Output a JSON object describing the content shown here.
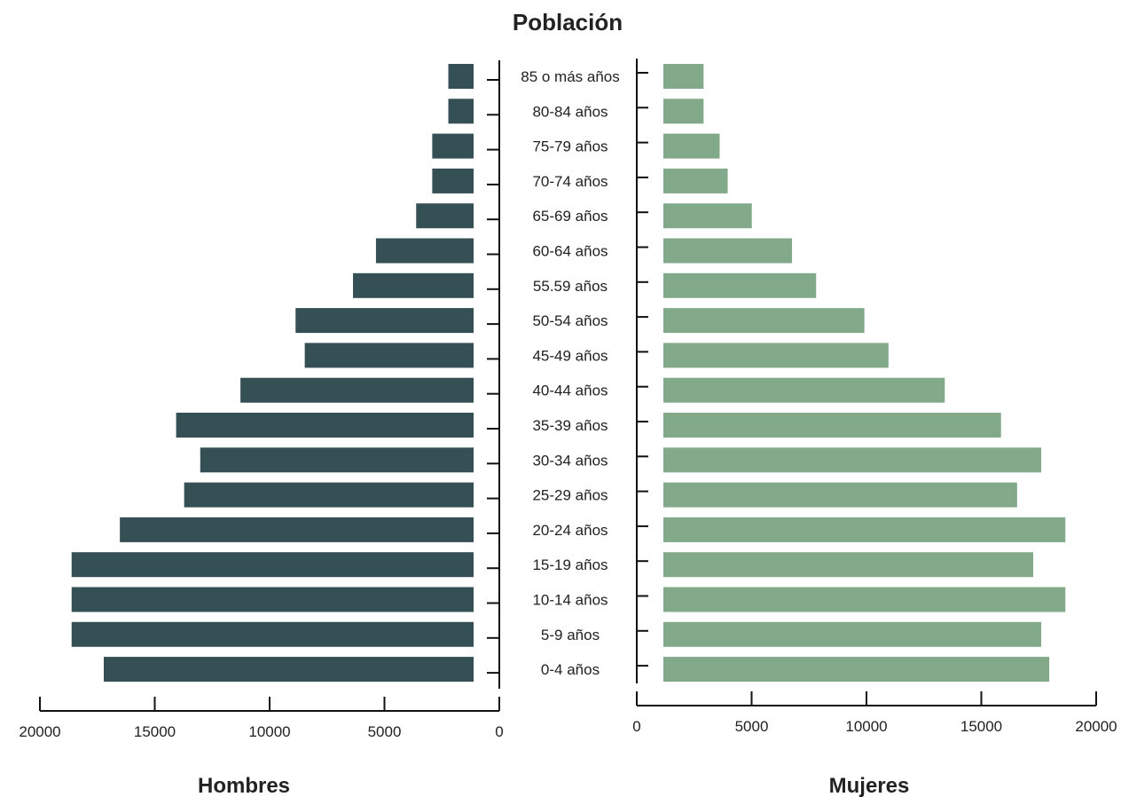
{
  "chart_data": {
    "type": "bar",
    "title": "Población",
    "categories": [
      "85 o más años",
      "80-84 años",
      "75-79  años",
      "70-74 años",
      "65-69 años",
      "60-64 años",
      "55.59 años",
      "50-54 años",
      "45-49 años",
      "40-44 años",
      "35-39 años",
      "30-34 años",
      "25-29 años",
      "20-24 años",
      "15-19 años",
      "10-14 años",
      "5-9 años",
      "0-4 años"
    ],
    "series": [
      {
        "name": "Hombres",
        "color": "#355054",
        "values": [
          1100,
          1100,
          1800,
          1800,
          2500,
          4250,
          5250,
          7750,
          7350,
          10150,
          12950,
          11900,
          12600,
          15400,
          17500,
          17500,
          17500,
          16100
        ]
      },
      {
        "name": "Mujeres",
        "color": "#82aa8a",
        "values": [
          1750,
          1750,
          2450,
          2800,
          3850,
          5600,
          6650,
          8750,
          9800,
          12250,
          14700,
          16450,
          15400,
          17500,
          16100,
          17500,
          16450,
          16800
        ]
      }
    ],
    "left_axis": {
      "label": "Hombres",
      "ticks": [
        "20000",
        "15000",
        "10000",
        "5000",
        "0"
      ],
      "tick_values": [
        20000,
        15000,
        10000,
        5000,
        0
      ],
      "reversed": true
    },
    "right_axis": {
      "label": "Mujeres",
      "ticks": [
        "0",
        "5000",
        "10000",
        "15000",
        "20000"
      ],
      "tick_values": [
        0,
        5000,
        10000,
        15000,
        20000
      ]
    },
    "xlim": [
      0,
      20000
    ]
  }
}
